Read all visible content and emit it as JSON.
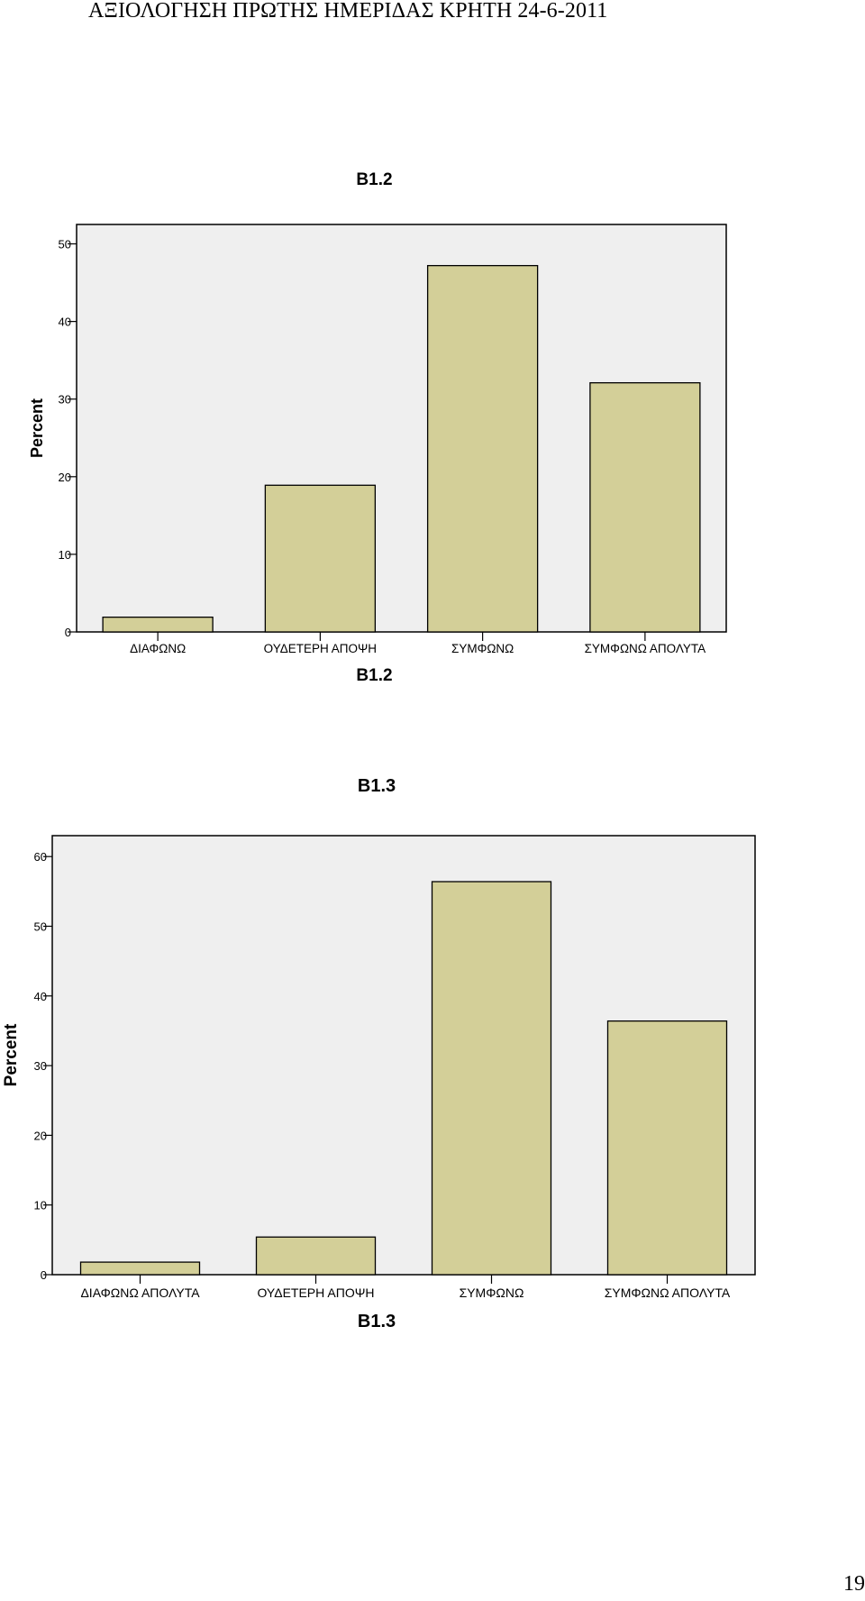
{
  "page": {
    "header": "ΑΞΙΟΛΟΓΗΣΗ ΠΡΩΤΗΣ ΗΜΕΡΙΔΑΣ ΚΡΗΤΗ 24-6-2011",
    "page_number": "19"
  },
  "colors": {
    "bar_fill": "#D3CF98",
    "plot_background": "#EFEFEF",
    "bar_stroke": "#000000"
  },
  "chart_data": [
    {
      "type": "bar",
      "title": "B1.2",
      "xlabel": "B1.2",
      "ylabel": "Percent",
      "categories": [
        "ΔΙΑΦΩΝΩ",
        "ΟΥΔΕΤΕΡΗ ΑΠΟΨΗ",
        "ΣΥΜΦΩΝΩ",
        "ΣΥΜΦΩΝΩ ΑΠΟΛΥΤΑ"
      ],
      "values": [
        1.9,
        18.9,
        47.2,
        32.1
      ],
      "ylim": [
        0,
        52.5
      ],
      "yticks": [
        "0",
        "10",
        "20",
        "30",
        "40",
        "50"
      ],
      "grid": false,
      "legend": "none"
    },
    {
      "type": "bar",
      "title": "B1.3",
      "xlabel": "B1.3",
      "ylabel": "Percent",
      "categories": [
        "ΔΙΑΦΩΝΩ ΑΠΟΛΥΤΑ",
        "ΟΥΔΕΤΕΡΗ ΑΠΟΨΗ",
        "ΣΥΜΦΩΝΩ",
        "ΣΥΜΦΩΝΩ ΑΠΟΛΥΤΑ"
      ],
      "values": [
        1.8,
        5.4,
        56.4,
        36.4
      ],
      "ylim": [
        0,
        63
      ],
      "yticks": [
        "0",
        "10",
        "20",
        "30",
        "40",
        "50",
        "60"
      ],
      "grid": false,
      "legend": "none"
    }
  ]
}
